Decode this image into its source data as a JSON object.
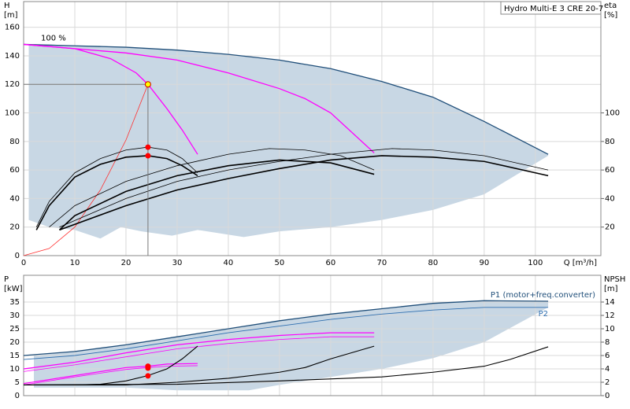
{
  "chart_data": [
    {
      "type": "line",
      "title": "Hydro Multi-E 3 CRE 20-7",
      "ylabel": [
        "H",
        "[m]"
      ],
      "y2label": [
        "eta",
        "[%]"
      ],
      "xlabel": "Q [m³/h]",
      "xlim": [
        0,
        112.8
      ],
      "xticks": [
        0,
        10,
        20,
        30,
        40,
        50,
        60,
        70,
        80,
        90,
        100
      ],
      "show_xtick_labels": true,
      "ylim": [
        0,
        178
      ],
      "yticks": [
        0,
        20,
        40,
        60,
        80,
        100,
        120,
        140,
        160
      ],
      "y2lim": [
        0,
        178
      ],
      "y2ticks": [
        20,
        40,
        60,
        80,
        100
      ],
      "grid": true,
      "bands": [
        {
          "color": "#c8d7e4",
          "x": [
            1,
            5,
            10,
            15,
            19,
            23,
            29,
            34,
            43,
            50,
            60,
            70,
            80,
            90,
            102.5
          ],
          "upper": [
            148,
            148,
            147,
            147,
            146,
            145,
            144,
            143,
            140,
            137,
            131,
            122,
            111,
            94,
            71
          ],
          "lower": [
            25,
            20,
            18,
            12,
            20,
            17,
            14,
            18,
            13,
            17,
            20,
            25,
            32,
            43,
            70
          ]
        }
      ],
      "series": [
        {
          "name": "100 %",
          "color": "#1f4e79",
          "width": 1.3,
          "x": [
            0,
            10,
            20,
            30,
            40,
            50,
            60,
            70,
            80,
            90,
            102.5
          ],
          "values": [
            148,
            147,
            146,
            144,
            141,
            137,
            131,
            122,
            111,
            94,
            71
          ]
        },
        {
          "color": "#ff00ff",
          "width": 1.3,
          "x": [
            0,
            10,
            17,
            22,
            24.3,
            28,
            31,
            34
          ],
          "values": [
            148,
            145,
            138,
            128,
            120,
            103,
            88,
            71
          ]
        },
        {
          "color": "#ff00ff",
          "width": 1.3,
          "x": [
            0,
            20,
            30,
            40,
            50,
            55,
            60,
            68.5
          ],
          "values": [
            148,
            142,
            137,
            128,
            117,
            110,
            100,
            72
          ]
        },
        {
          "color": "#ff3030",
          "width": 0.8,
          "x": [
            0,
            5,
            10,
            15,
            20,
            24.3
          ],
          "values": [
            0,
            5,
            20,
            46,
            81,
            120
          ]
        },
        {
          "color": "#000000",
          "width": 1.6,
          "axis": "y2",
          "x": [
            2.5,
            5,
            10,
            15,
            20,
            24.3,
            28,
            31,
            34
          ],
          "values": [
            18,
            35,
            55,
            64,
            69,
            70,
            68,
            63,
            56
          ]
        },
        {
          "color": "#000000",
          "width": 0.8,
          "axis": "y2",
          "x": [
            2.5,
            5,
            10,
            15,
            20,
            24.3,
            28,
            31,
            34
          ],
          "values": [
            20,
            38,
            58,
            68,
            74,
            76,
            74,
            68,
            58
          ]
        },
        {
          "color": "#000000",
          "width": 0.8,
          "axis": "y2",
          "x": [
            5,
            10,
            20,
            30,
            40,
            48,
            55,
            62,
            68.5
          ],
          "values": [
            20,
            35,
            52,
            63,
            71,
            75,
            74,
            70,
            60
          ]
        },
        {
          "color": "#000000",
          "width": 1.6,
          "axis": "y2",
          "x": [
            7,
            10,
            20,
            30,
            40,
            50,
            60,
            68.5
          ],
          "values": [
            18,
            28,
            45,
            56,
            63,
            67,
            65,
            57
          ]
        },
        {
          "color": "#000000",
          "width": 0.8,
          "axis": "y2",
          "x": [
            7,
            20,
            30,
            40,
            50,
            60,
            72,
            80,
            90,
            102.5
          ],
          "values": [
            20,
            40,
            52,
            60,
            66,
            71,
            75,
            74,
            70,
            60
          ]
        },
        {
          "color": "#000000",
          "width": 1.6,
          "axis": "y2",
          "x": [
            7,
            20,
            30,
            40,
            50,
            60,
            70,
            80,
            90,
            102.5
          ],
          "values": [
            18,
            35,
            46,
            54,
            61,
            67,
            70,
            69,
            66,
            56
          ]
        }
      ],
      "points": [
        {
          "x": 24.3,
          "y": 120,
          "color": "#ffff00",
          "guide": true
        },
        {
          "x": 24.3,
          "y": 76,
          "color": "#ff0000",
          "axis": "y2"
        },
        {
          "x": 24.3,
          "y": 70,
          "color": "#ff0000",
          "axis": "y2"
        }
      ]
    },
    {
      "type": "line",
      "ylabel": [
        "P",
        "[kW]"
      ],
      "y2label": [
        "NPSH",
        "[m]"
      ],
      "xlim": [
        0,
        112.8
      ],
      "xticks": [
        0,
        10,
        20,
        30,
        40,
        50,
        60,
        70,
        80,
        90,
        100
      ],
      "show_xtick_labels": false,
      "ylim": [
        0,
        45
      ],
      "yticks": [
        0,
        5,
        10,
        15,
        20,
        25,
        30,
        35
      ],
      "y2lim": [
        0,
        18
      ],
      "y2ticks": [
        0,
        2,
        4,
        6,
        8,
        10,
        12,
        14
      ],
      "grid": true,
      "bands": [
        {
          "color": "#c8d7e4",
          "x": [
            2,
            10,
            20,
            30,
            44,
            50,
            60,
            70,
            80,
            90,
            102.5
          ],
          "upper": [
            15,
            16.5,
            19,
            22,
            26,
            28,
            30.5,
            32.5,
            34.5,
            35.5,
            35.3
          ],
          "lower": [
            3,
            3,
            3,
            2,
            2,
            4,
            7,
            10,
            14,
            20,
            33
          ]
        }
      ],
      "series": [
        {
          "name": "P1 (motor+freq.converter)",
          "color": "#1f4e79",
          "width": 1.3,
          "x": [
            0,
            10,
            20,
            30,
            40,
            50,
            60,
            70,
            80,
            90,
            102.5
          ],
          "values": [
            15,
            16.5,
            19,
            22,
            25,
            28,
            30.5,
            32.5,
            34.5,
            35.5,
            35.3
          ]
        },
        {
          "name": "P2",
          "color": "#2f6fb0",
          "width": 0.9,
          "x": [
            0,
            10,
            20,
            30,
            40,
            50,
            60,
            70,
            80,
            90,
            102.5
          ],
          "values": [
            13.5,
            15,
            17.5,
            20.5,
            23.5,
            26,
            28.5,
            30.5,
            32,
            33,
            33
          ]
        },
        {
          "color": "#ff00ff",
          "width": 1.2,
          "x": [
            0,
            10,
            20,
            30,
            40,
            50,
            60,
            68.5
          ],
          "values": [
            10,
            12.5,
            16,
            19,
            21,
            22.5,
            23.5,
            23.5
          ]
        },
        {
          "color": "#ff00ff",
          "width": 0.8,
          "x": [
            0,
            10,
            20,
            30,
            40,
            50,
            60,
            68.5
          ],
          "values": [
            9,
            11.5,
            14.5,
            17.5,
            19.5,
            21,
            22,
            22
          ]
        },
        {
          "color": "#ff00ff",
          "width": 1.2,
          "x": [
            0,
            10,
            20,
            24.3,
            28,
            34
          ],
          "values": [
            4.5,
            7.5,
            10.5,
            11,
            11.8,
            12
          ]
        },
        {
          "color": "#ff00ff",
          "width": 0.8,
          "x": [
            0,
            10,
            20,
            24.3,
            28,
            34
          ],
          "values": [
            4,
            7,
            9.8,
            10.5,
            11,
            11.2
          ]
        },
        {
          "color": "#000000",
          "width": 1.1,
          "axis": "y2",
          "x": [
            0,
            10,
            15,
            20,
            24.3,
            28,
            31,
            34
          ],
          "values": [
            1.6,
            1.6,
            1.7,
            2.2,
            3,
            4,
            5.5,
            7.4
          ]
        },
        {
          "color": "#000000",
          "width": 1.1,
          "axis": "y2",
          "x": [
            0,
            20,
            30,
            40,
            50,
            55,
            60,
            68.5
          ],
          "values": [
            1.6,
            1.6,
            2,
            2.6,
            3.5,
            4.2,
            5.5,
            7.4
          ]
        },
        {
          "color": "#000000",
          "width": 1.1,
          "axis": "y2",
          "x": [
            0,
            30,
            50,
            70,
            80,
            90,
            95,
            102.5
          ],
          "values": [
            1.6,
            1.7,
            2.2,
            2.8,
            3.5,
            4.4,
            5.4,
            7.3
          ]
        }
      ],
      "points": [
        {
          "x": 24.3,
          "y": 11,
          "color": "#ff0000"
        },
        {
          "x": 24.3,
          "y": 10.3,
          "color": "#ff0000"
        },
        {
          "x": 24.3,
          "y": 2.96,
          "color": "#ff0000",
          "axis": "y2"
        }
      ]
    }
  ]
}
